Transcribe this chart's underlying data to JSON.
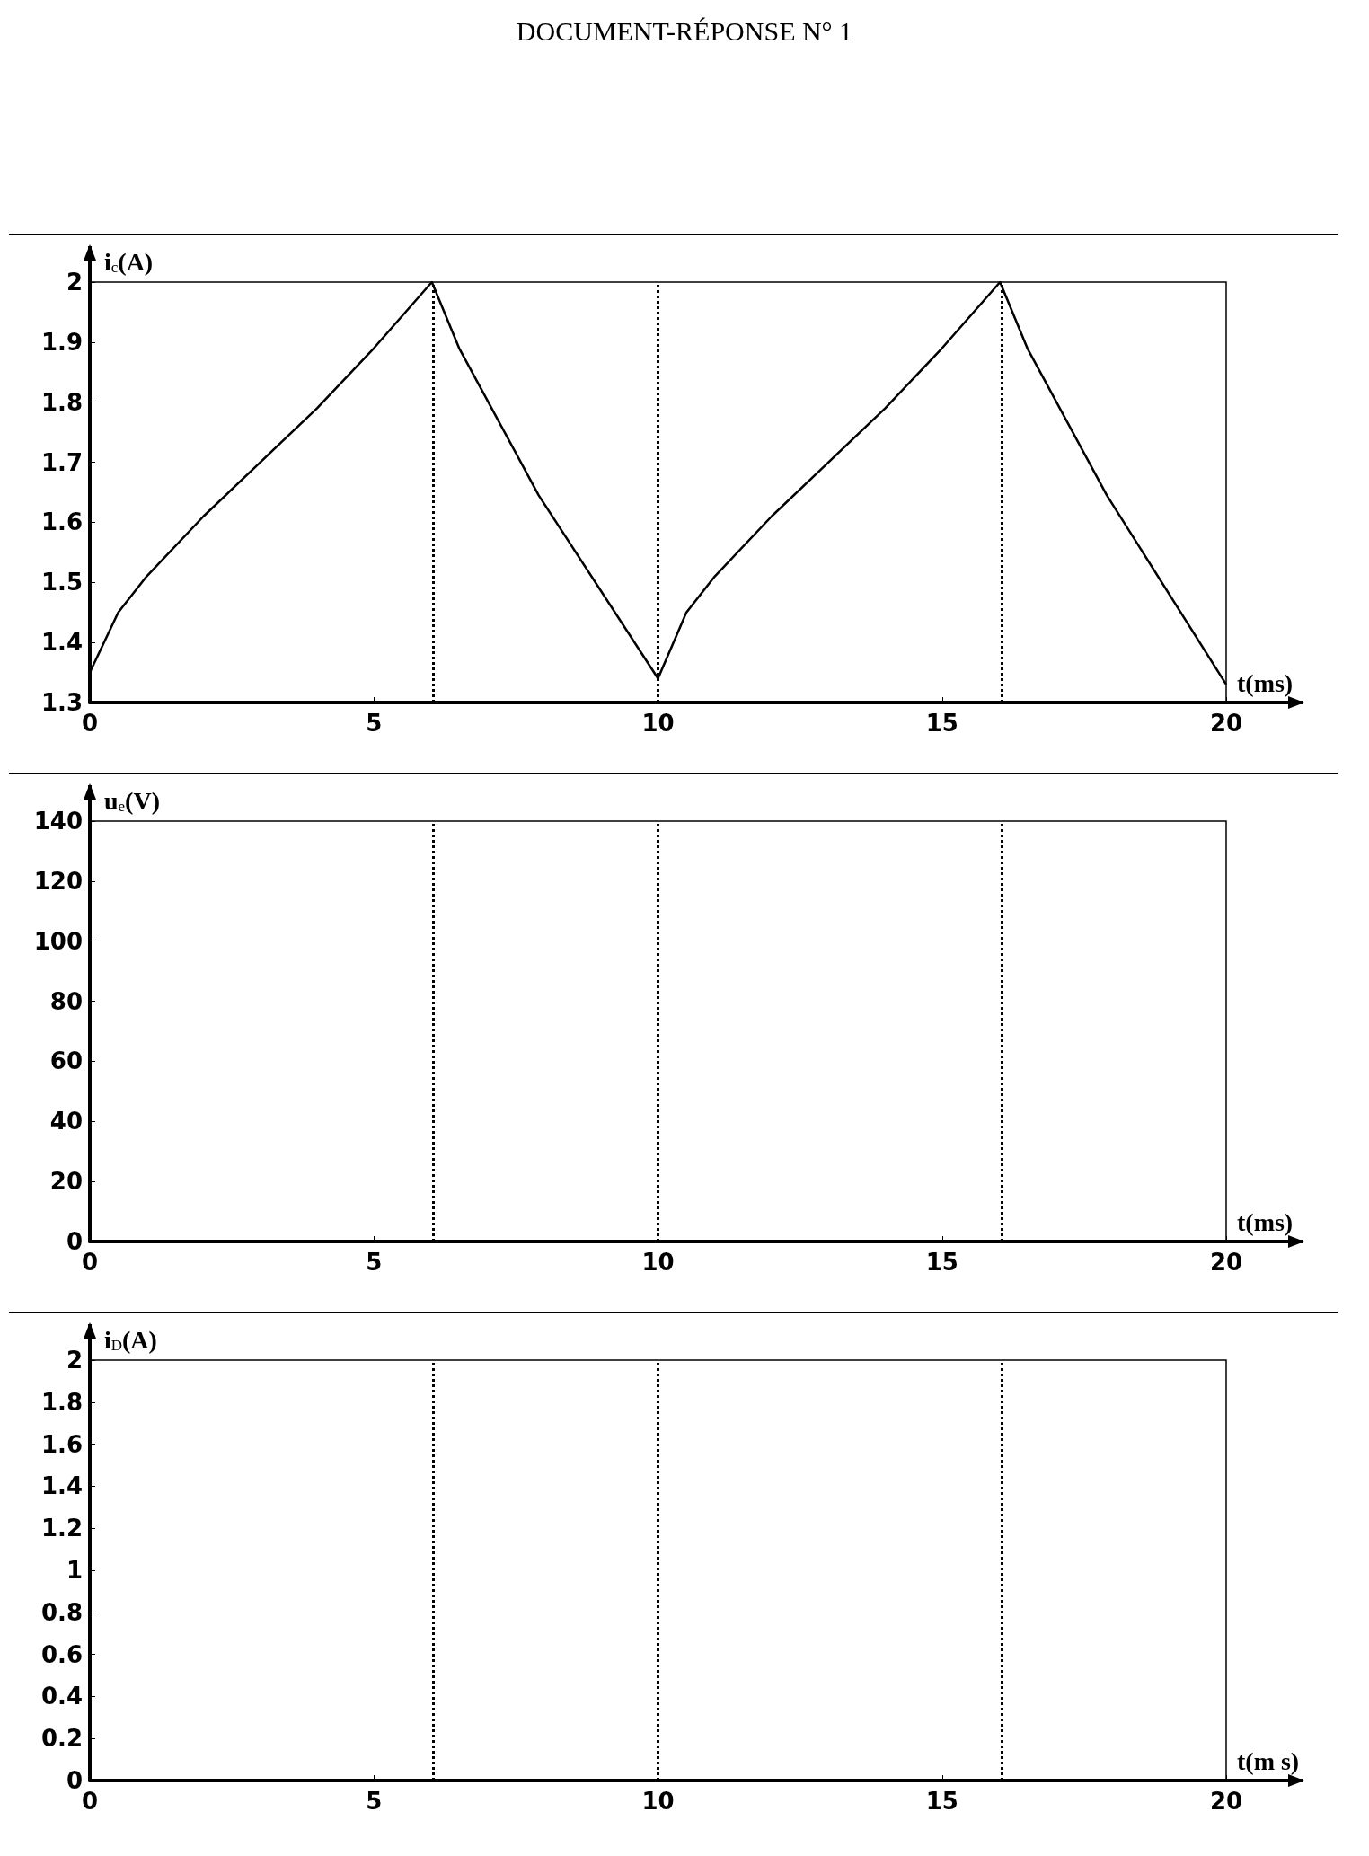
{
  "chart_data": [
    {
      "type": "line",
      "title": "DOCUMENT-RÉPONSE N° 1",
      "xlabel": "t(ms)",
      "ylabel": "i$_{c}$(A)",
      "series": [
        {
          "color": "#000000",
          "x": [
            0,
            0.5,
            1,
            2,
            3,
            4,
            5,
            6.02,
            6.5,
            7.9,
            10,
            10.5,
            11,
            12,
            13,
            14,
            15,
            16.02,
            16.5,
            17.9,
            20
          ],
          "values": [
            1.35,
            1.45,
            1.51,
            1.61,
            1.7,
            1.79,
            1.89,
            2.0,
            1.89,
            1.645,
            1.34,
            1.45,
            1.51,
            1.61,
            1.7,
            1.79,
            1.89,
            2.0,
            1.89,
            1.645,
            1.33
          ]
        }
      ],
      "xlim": [
        0,
        20
      ],
      "xticks": [
        0,
        5,
        10,
        15,
        20
      ],
      "ylim": [
        1.3,
        2
      ],
      "yticks": [
        1.3,
        1.4,
        1.5,
        1.6,
        1.7,
        1.8,
        1.9,
        2
      ],
      "ref_lines": [
        {
          "axis": "x",
          "value": 6.05,
          "line_style": "dotted",
          "color": "#000000"
        },
        {
          "axis": "x",
          "value": 10,
          "line_style": "dotted",
          "color": "#000000"
        },
        {
          "axis": "x",
          "value": 16.05,
          "line_style": "dotted",
          "color": "#000000"
        }
      ],
      "grid": false,
      "marker": "none",
      "line_style": "solid"
    },
    {
      "type": "line",
      "xlabel": "t(ms)",
      "ylabel": "u$_{e}$(V)",
      "xlim": [
        0,
        20
      ],
      "xticks": [
        0,
        5,
        10,
        15,
        20
      ],
      "ylim": [
        0,
        140
      ],
      "yticks": [
        0,
        20,
        40,
        60,
        80,
        100,
        120,
        140
      ],
      "ref_lines": [
        {
          "axis": "x",
          "value": 6.05,
          "line_style": "dotted",
          "color": "#000000"
        },
        {
          "axis": "x",
          "value": 10,
          "line_style": "dotted",
          "color": "#000000"
        },
        {
          "axis": "x",
          "value": 16.05,
          "line_style": "dotted",
          "color": "#000000"
        }
      ],
      "grid": false
    },
    {
      "type": "line",
      "xlabel": "t(m s)",
      "ylabel": "i$_{D}$(A)",
      "xlim": [
        0,
        20
      ],
      "xticks": [
        0,
        5,
        10,
        15,
        20
      ],
      "ylim": [
        0,
        2
      ],
      "yticks": [
        0,
        0.2,
        0.4,
        0.6,
        0.8,
        1,
        1.2,
        1.4,
        1.6,
        1.8,
        2
      ],
      "ref_lines": [
        {
          "axis": "x",
          "value": 6.05,
          "line_style": "dotted",
          "color": "#000000"
        },
        {
          "axis": "x",
          "value": 10,
          "line_style": "dotted",
          "color": "#000000"
        },
        {
          "axis": "x",
          "value": 16.05,
          "line_style": "dotted",
          "color": "#000000"
        }
      ],
      "grid": false
    }
  ]
}
